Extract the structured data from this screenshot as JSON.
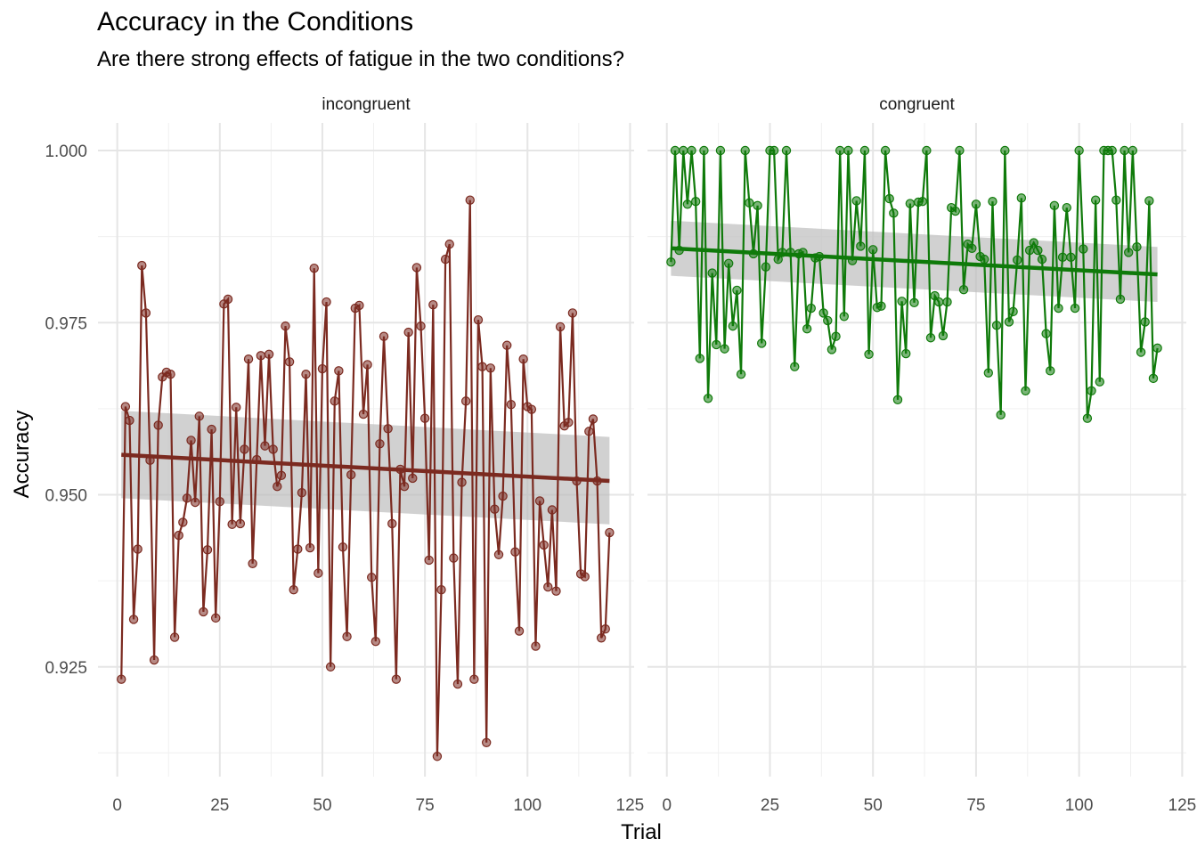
{
  "title": "Accuracy in the Conditions",
  "subtitle": "Are there strong effects of fatigue in the two conditions?",
  "chart_data": {
    "type": "line",
    "xlabel": "Trial",
    "ylabel": "Accuracy",
    "xlim": [
      0,
      125
    ],
    "ylim": [
      0.905,
      1.0
    ],
    "x_ticks": [
      "0",
      "25",
      "50",
      "75",
      "100",
      "125"
    ],
    "y_ticks": [
      "0.925",
      "0.950",
      "0.975",
      "1.000"
    ],
    "x_tick_values": [
      0,
      25,
      50,
      75,
      100,
      125
    ],
    "y_tick_values": [
      0.925,
      0.95,
      0.975,
      1.0
    ],
    "grid": true,
    "facets": [
      {
        "strip": "incongruent",
        "color": "#7B2A20",
        "values": [
          0.9232,
          0.9628,
          0.9608,
          0.9319,
          0.9421,
          0.9833,
          0.9764,
          0.955,
          0.926,
          0.9601,
          0.9671,
          0.9678,
          0.9675,
          0.9293,
          0.9441,
          0.946,
          0.9495,
          0.9579,
          0.9489,
          0.9614,
          0.933,
          0.942,
          0.9595,
          0.9321,
          0.949,
          0.9777,
          0.9784,
          0.9457,
          0.9627,
          0.9458,
          0.9566,
          0.9697,
          0.94,
          0.9551,
          0.9702,
          0.9571,
          0.9704,
          0.9566,
          0.9512,
          0.9528,
          0.9745,
          0.9693,
          0.9362,
          0.9421,
          0.9503,
          0.9675,
          0.9423,
          0.9829,
          0.9386,
          0.9683,
          0.978,
          0.925,
          0.9636,
          0.968,
          0.9424,
          0.9294,
          0.9529,
          0.9771,
          0.9775,
          0.9617,
          0.9689,
          0.938,
          0.9287,
          0.9574,
          0.973,
          0.9596,
          0.9458,
          0.9232,
          0.9537,
          0.9512,
          0.9736,
          0.9524,
          0.983,
          0.9745,
          0.9611,
          0.9405,
          0.9776,
          0.912,
          0.9362,
          0.9842,
          0.9864,
          0.9408,
          0.9225,
          0.9518,
          0.9636,
          0.9928,
          0.9232,
          0.9754,
          0.9686,
          0.914,
          0.9684,
          0.9479,
          0.9413,
          0.9498,
          0.9717,
          0.9631,
          0.9417,
          0.9302,
          0.9697,
          0.9628,
          0.9624,
          0.928,
          0.9491,
          0.9427,
          0.9366,
          0.9478,
          0.936,
          0.9744,
          0.96,
          0.9605,
          0.9764,
          0.952,
          0.9385,
          0.9381,
          0.9592,
          0.961,
          0.952,
          0.9292,
          0.9305,
          0.9445
        ],
        "trend": {
          "start": 0.9558,
          "end": 0.952,
          "band_start": [
            0.9495,
            0.9622
          ],
          "band_end": [
            0.9457,
            0.9584
          ]
        }
      },
      {
        "strip": "congruent",
        "color": "#0F7A0A",
        "values": [
          0.9838,
          1.0,
          0.9855,
          1.0,
          0.9922,
          1.0,
          0.9926,
          0.9698,
          1.0,
          0.964,
          0.9822,
          0.9718,
          1.0,
          0.9712,
          0.9836,
          0.9745,
          0.9797,
          0.9675,
          1.0,
          0.9924,
          0.985,
          0.992,
          0.972,
          0.9831,
          1.0,
          1.0,
          0.9842,
          0.9852,
          1.0,
          0.9852,
          0.9686,
          0.985,
          0.9852,
          0.9741,
          0.9771,
          0.9844,
          0.9846,
          0.9764,
          0.9753,
          0.9711,
          0.973,
          1.0,
          0.9759,
          1.0,
          0.984,
          0.9927,
          0.9861,
          1.0,
          0.9704,
          0.9856,
          0.9772,
          0.9774,
          1.0,
          0.993,
          0.9909,
          0.9638,
          0.9781,
          0.9705,
          0.9923,
          0.9779,
          0.9925,
          0.9926,
          1.0,
          0.9728,
          0.9789,
          0.978,
          0.9731,
          0.978,
          0.9917,
          0.9912,
          1.0,
          0.9798,
          0.9864,
          0.9858,
          0.9922,
          0.9846,
          0.9842,
          0.9677,
          0.9926,
          0.9746,
          0.9616,
          1.0,
          0.9751,
          0.9766,
          0.9841,
          0.9931,
          0.9651,
          0.9855,
          0.9866,
          0.9855,
          0.9842,
          0.9734,
          0.968,
          0.992,
          0.9771,
          0.9845,
          0.9917,
          0.9845,
          0.9771,
          1.0,
          0.9857,
          0.9611,
          0.9651,
          0.9928,
          0.9664,
          1.0,
          1.0,
          1.0,
          0.9928,
          0.9784,
          1.0,
          0.9852,
          1.0,
          0.986,
          0.9707,
          0.9751,
          0.9927,
          0.9669,
          0.9713
        ],
        "trend": {
          "start": 0.9858,
          "end": 0.982,
          "band_start": [
            0.9818,
            0.9898
          ],
          "band_end": [
            0.978,
            0.986
          ]
        }
      }
    ]
  }
}
